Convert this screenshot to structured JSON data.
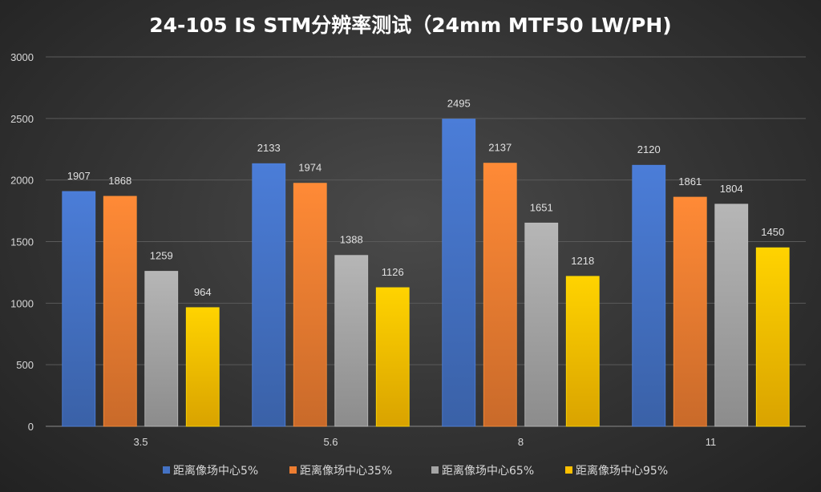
{
  "chart_data": {
    "type": "bar",
    "title": "24-105 IS STM分辨率测试（24mm MTF50 LW/PH)",
    "xlabel": "",
    "ylabel": "",
    "categories": [
      "3.5",
      "5.6",
      "8",
      "11"
    ],
    "ylim": [
      0,
      3000
    ],
    "yticks": [
      0,
      500,
      1000,
      1500,
      2000,
      2500,
      3000
    ],
    "grid": true,
    "legend_position": "bottom",
    "series": [
      {
        "name": "距离像场中心5%",
        "color": "#4472C4",
        "values": [
          1907,
          2133,
          2495,
          2120
        ]
      },
      {
        "name": "距离像场中心35%",
        "color": "#ED7D31",
        "values": [
          1868,
          1974,
          2137,
          1861
        ]
      },
      {
        "name": "距离像场中心65%",
        "color": "#A5A5A5",
        "values": [
          1259,
          1388,
          1651,
          1804
        ]
      },
      {
        "name": "距离像场中心95%",
        "color": "#FFC000",
        "values": [
          964,
          1126,
          1218,
          1450
        ]
      }
    ]
  }
}
